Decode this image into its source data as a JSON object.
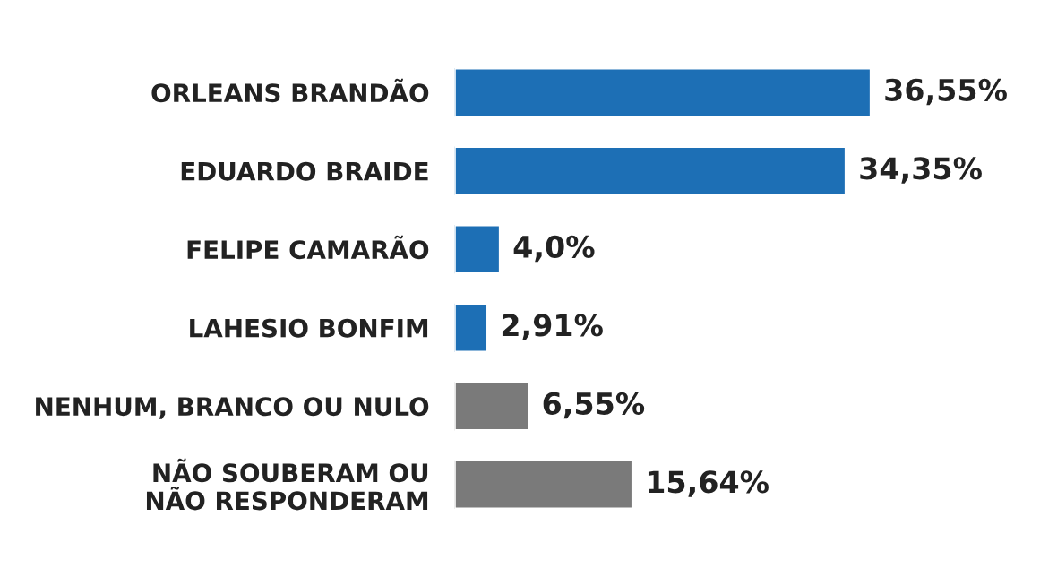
{
  "chart_data": {
    "type": "bar",
    "orientation": "horizontal",
    "categories": [
      "ORLEANS BRANDÃO",
      "EDUARDO BRAIDE",
      "FELIPE CAMARÃO",
      "LAHESIO BONFIM",
      "NENHUM, BRANCO OU NULO",
      "NÃO SOUBERAM OU\nNÃO RESPONDERAM"
    ],
    "values": [
      36.55,
      34.35,
      4.0,
      2.91,
      6.55,
      15.64
    ],
    "colors": [
      "#1d6fb5",
      "#1d6fb5",
      "#1d6fb5",
      "#1d6fb5",
      "#7a7a7a",
      "#7a7a7a"
    ],
    "value_labels": [
      "36,55%",
      "34,35%",
      "4,0%",
      "2,91%",
      "6,55%",
      "15,64%"
    ]
  }
}
